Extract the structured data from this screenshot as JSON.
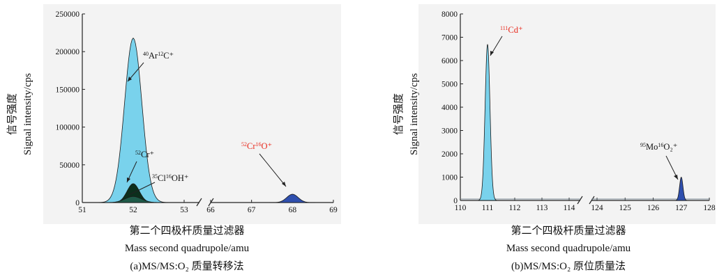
{
  "chart_data": [
    {
      "type": "area",
      "panel_caption": "(a)MS/MS:O₂ 质量转移法",
      "ylabel_cn": "信号强度",
      "ylabel_en": "Signal intensity/cps",
      "xlabel_cn": "第二个四极杆质量过滤器",
      "xlabel_en": "Mass second quadrupole/amu",
      "ylim": [
        0,
        250000
      ],
      "yticks": [
        "0",
        "50000",
        "100000",
        "150000",
        "200000",
        "250000"
      ],
      "xticks": [
        51,
        52,
        53,
        66,
        67,
        68,
        69
      ],
      "axis_break": "between 53 and 66",
      "peaks": [
        {
          "label_sup": "40",
          "label_text": "Ar",
          "label_sup2": "12",
          "label_text2": "C⁺",
          "center": 52.0,
          "height": 218000,
          "color": "#79d2ec",
          "label_red": false
        },
        {
          "label_sup": "52",
          "label_text": "Cr⁺",
          "center": 52.0,
          "height": 25000,
          "color": "#0c2f1c",
          "label_red": false
        },
        {
          "label_sup": "35",
          "label_text": "Cl",
          "label_sup2": "16",
          "label_text2": "OH⁺",
          "center": 52.0,
          "height": 8000,
          "color": "#1f5a48",
          "label_red": false
        },
        {
          "label_sup": "52",
          "label_text": "Cr",
          "label_sup2": "16",
          "label_text2": "O⁺",
          "center": 68.0,
          "height": 11000,
          "color": "#2f4fae",
          "label_red": true
        }
      ]
    },
    {
      "type": "area",
      "panel_caption": "(b)MS/MS:O₂ 原位质量法",
      "ylabel_cn": "信号强度",
      "ylabel_en": "Signal intensity/cps",
      "xlabel_cn": "第二个四极杆质量过滤器",
      "xlabel_en": "Mass second quadrupole/amu",
      "ylim": [
        0,
        8000
      ],
      "yticks": [
        "0",
        "1000",
        "2000",
        "3000",
        "4000",
        "5000",
        "6000",
        "7000",
        "8000"
      ],
      "xticks": [
        110,
        111,
        112,
        113,
        114,
        124,
        125,
        126,
        127,
        128
      ],
      "axis_break": "between 114 and 124",
      "peaks": [
        {
          "label_sup": "111",
          "label_text": "Cd⁺",
          "center": 111.0,
          "height": 6700,
          "color": "#79d2ec",
          "label_red": true
        },
        {
          "label_sup": "95",
          "label_text": "Mo",
          "label_sup2": "16",
          "label_text2": "O₂⁺",
          "center": 127.0,
          "height": 1000,
          "color": "#2f4fae",
          "label_red": false
        }
      ]
    }
  ]
}
